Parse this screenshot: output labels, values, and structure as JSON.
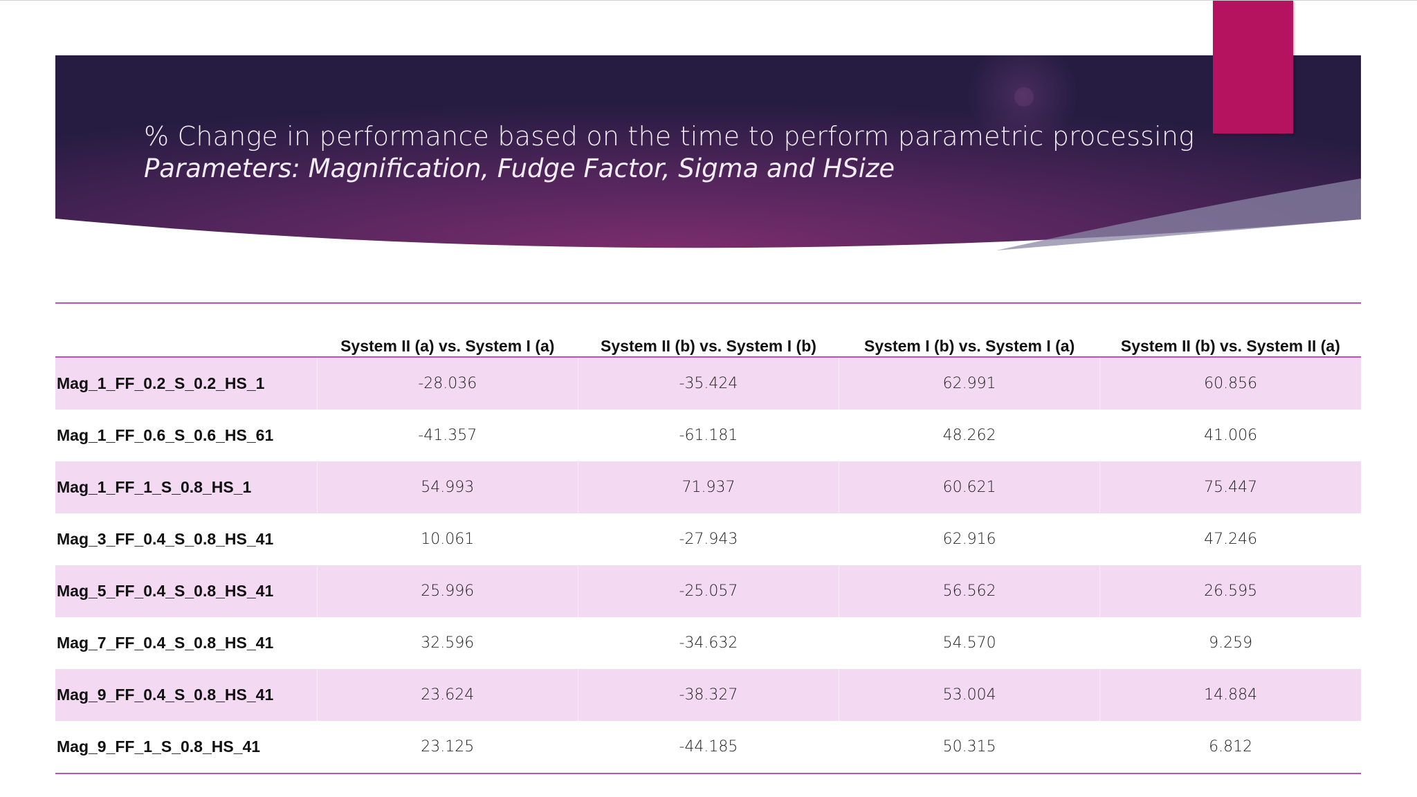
{
  "title": {
    "line1": "% Change in performance based on the time to perform parametric processing",
    "line2": "Parameters: Magnification, Fudge Factor, Sigma and HSize"
  },
  "colors": {
    "banner_dark": "#2a1e46",
    "banner_mid": "#6d2a66",
    "accent": "#b5135f",
    "row_band": "#f3daf2",
    "rule": "#c04fba"
  },
  "table": {
    "headers": [
      "",
      "System II (a) vs. System I (a)",
      "System II (b) vs. System I (b)",
      "System I (b) vs. System I (a)",
      "System II (b) vs. System II (a)"
    ],
    "rows": [
      [
        "Mag_1_FF_0.2_S_0.2_HS_1",
        "-28.036",
        "-35.424",
        "62.991",
        "60.856"
      ],
      [
        "Mag_1_FF_0.6_S_0.6_HS_61",
        "-41.357",
        "-61.181",
        "48.262",
        "41.006"
      ],
      [
        "Mag_1_FF_1_S_0.8_HS_1",
        "54.993",
        "71.937",
        "60.621",
        "75.447"
      ],
      [
        "Mag_3_FF_0.4_S_0.8_HS_41",
        "10.061",
        "-27.943",
        "62.916",
        "47.246"
      ],
      [
        "Mag_5_FF_0.4_S_0.8_HS_41",
        "25.996",
        "-25.057",
        "56.562",
        "26.595"
      ],
      [
        "Mag_7_FF_0.4_S_0.8_HS_41",
        "32.596",
        "-34.632",
        "54.570",
        "9.259"
      ],
      [
        "Mag_9_FF_0.4_S_0.8_HS_41",
        "23.624",
        "-38.327",
        "53.004",
        "14.884"
      ],
      [
        "Mag_9_FF_1_S_0.8_HS_41",
        "23.125",
        "-44.185",
        "50.315",
        "6.812"
      ]
    ]
  }
}
